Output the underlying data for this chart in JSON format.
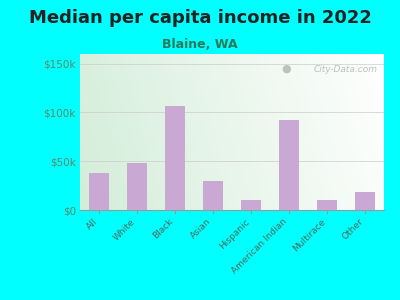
{
  "title": "Median per capita income in 2022",
  "subtitle": "Blaine, WA",
  "categories": [
    "All",
    "White",
    "Black",
    "Asian",
    "Hispanic",
    "American Indian",
    "Multirace",
    "Other"
  ],
  "values": [
    38000,
    48000,
    107000,
    30000,
    10000,
    92000,
    10000,
    18000
  ],
  "bar_color": "#c9a8d4",
  "title_fontsize": 13,
  "subtitle_fontsize": 9,
  "subtitle_color": "#2a7a5a",
  "background_outer": "#00ffff",
  "ylim": [
    0,
    160000
  ],
  "yticks": [
    0,
    50000,
    100000,
    150000
  ],
  "ytick_labels": [
    "$0",
    "$50k",
    "$100k",
    "$150k"
  ],
  "watermark": "City-Data.com",
  "tick_color": "#5a8a6a",
  "xtick_color": "#4a6a5a"
}
